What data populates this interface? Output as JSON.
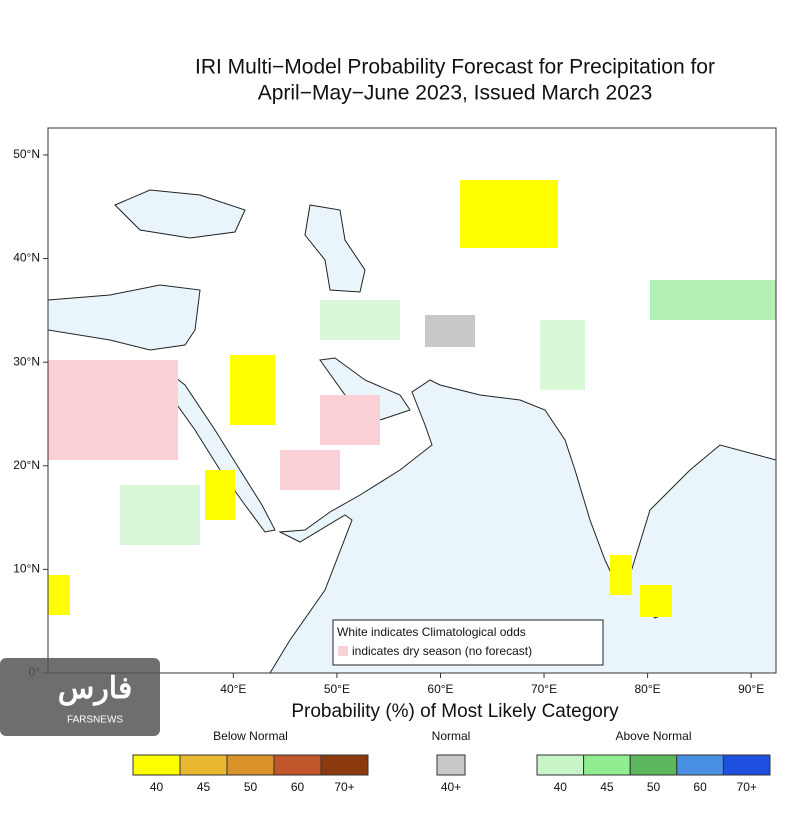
{
  "title_lines": [
    "IRI Multi−Model Probability Forecast for Precipitation for",
    "April−May−June 2023, Issued March 2023"
  ],
  "map": {
    "xlim": [
      22.1,
      92.4
    ],
    "ylim": [
      0,
      52.6
    ],
    "xticks": [
      {
        "value": 40,
        "label": "40°E"
      },
      {
        "value": 50,
        "label": "50°E"
      },
      {
        "value": 60,
        "label": "60°E"
      },
      {
        "value": 70,
        "label": "70°E"
      },
      {
        "value": 80,
        "label": "80°E"
      },
      {
        "value": 90,
        "label": "90°E"
      }
    ],
    "yticks": [
      {
        "value": 50,
        "label": "50°N"
      },
      {
        "value": 40,
        "label": "40°N"
      },
      {
        "value": 30,
        "label": "30°N"
      },
      {
        "value": 20,
        "label": "20°N"
      },
      {
        "value": 10,
        "label": "10°N"
      },
      {
        "value": 0,
        "label": "0°"
      }
    ]
  },
  "note_lines": [
    "White indicates Climatological odds",
    "indicates dry season (no forecast)"
  ],
  "axis_label": "Probability (%) of Most Likely Category",
  "legend": [
    {
      "name": "Below Normal",
      "colors": [
        "#ffff00",
        "#e8b830",
        "#d9922a",
        "#c0562a",
        "#8b3a10"
      ],
      "labels": [
        "40",
        "45",
        "50",
        "60",
        "70+"
      ]
    },
    {
      "name": "Normal",
      "colors": [
        "#c8c8c8"
      ],
      "labels": [
        "40+"
      ]
    },
    {
      "name": "Above Normal",
      "colors": [
        "#c8f5c8",
        "#90ee90",
        "#5cb85c",
        "#4a90e2",
        "#1e50e0"
      ],
      "labels": [
        "40",
        "45",
        "50",
        "60",
        "70+"
      ]
    }
  ],
  "watermark": [
    "فارس",
    "FARSNEWS"
  ]
}
